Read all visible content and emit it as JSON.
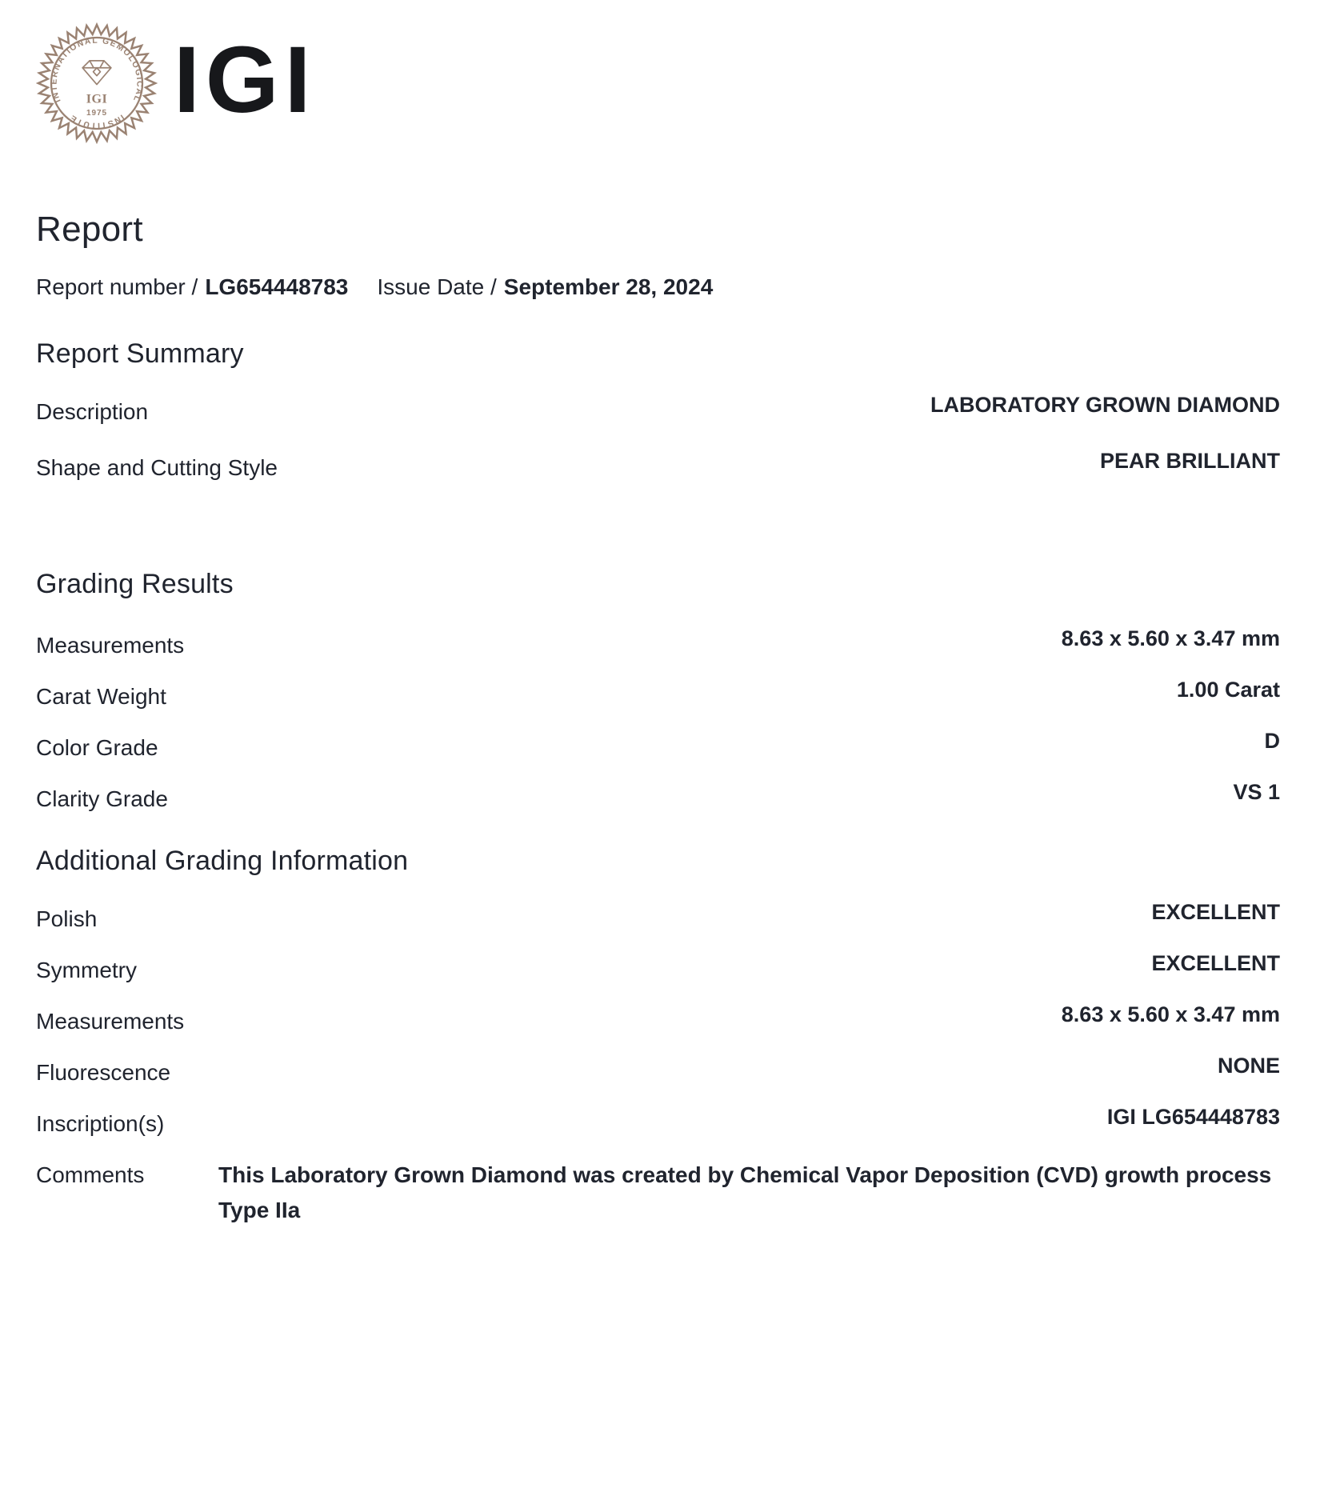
{
  "colors": {
    "text": "#20242e",
    "wordmark": "#17181b",
    "seal": "#9a8272"
  },
  "logo": {
    "wordmark": "IGI",
    "seal": {
      "ring_text_top": "INTERNATIONAL GEMOLOGICAL",
      "ring_text_bottom": "INSTITUTE",
      "monogram": "IGI",
      "year": "1975"
    }
  },
  "report": {
    "title": "Report",
    "meta": {
      "report_number_label": "Report number /",
      "report_number": "LG654448783",
      "issue_date_label": "Issue Date /",
      "issue_date": "September 28, 2024"
    }
  },
  "summary": {
    "title": "Report Summary",
    "rows": [
      {
        "label": "Description",
        "value": "LABORATORY GROWN DIAMOND"
      },
      {
        "label": "Shape and Cutting Style",
        "value": "PEAR BRILLIANT"
      }
    ]
  },
  "grading": {
    "title": "Grading Results",
    "rows": [
      {
        "label": "Measurements",
        "value": "8.63 x 5.60 x 3.47 mm"
      },
      {
        "label": "Carat Weight",
        "value": "1.00 Carat"
      },
      {
        "label": "Color Grade",
        "value": "D"
      },
      {
        "label": "Clarity Grade",
        "value": "VS 1"
      }
    ]
  },
  "additional": {
    "title": "Additional Grading Information",
    "rows": [
      {
        "label": "Polish",
        "value": "EXCELLENT"
      },
      {
        "label": "Symmetry",
        "value": "EXCELLENT"
      },
      {
        "label": "Measurements",
        "value": "8.63 x 5.60 x 3.47 mm"
      },
      {
        "label": "Fluorescence",
        "value": "NONE"
      },
      {
        "label": "Inscription(s)",
        "value": "IGI LG654448783"
      }
    ],
    "comments_label": "Comments",
    "comments_value": "This Laboratory Grown Diamond was created by Chemical Vapor Deposition (CVD) growth process Type IIa"
  }
}
